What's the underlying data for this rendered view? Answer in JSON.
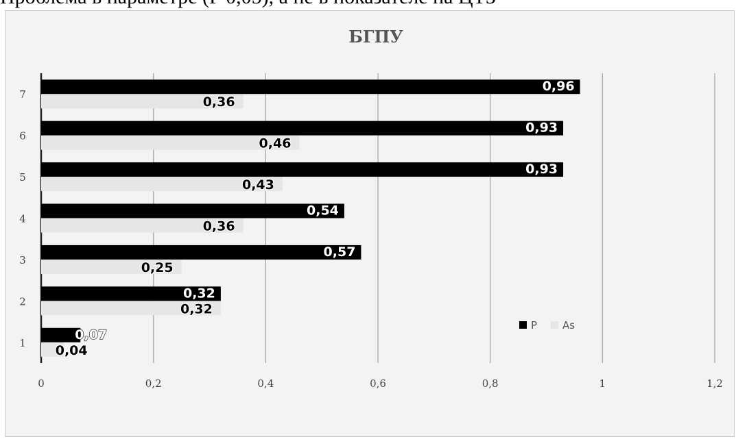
{
  "cut_text": "Проблема в параметре (Р 0,05), а не в показателе на ЦТЗ",
  "chart_data": {
    "type": "bar",
    "orientation": "horizontal",
    "title": "БГПУ",
    "categories": [
      "1",
      "2",
      "3",
      "4",
      "5",
      "6",
      "7"
    ],
    "series": [
      {
        "name": "P",
        "color": "#000000",
        "values": [
          0.07,
          0.32,
          0.57,
          0.54,
          0.93,
          0.93,
          0.96
        ],
        "labels": [
          "0,07",
          "0,32",
          "0,57",
          "0,54",
          "0,93",
          "0,93",
          "0,96"
        ]
      },
      {
        "name": "As",
        "color": "#e6e6e6",
        "values": [
          0.04,
          0.32,
          0.25,
          0.36,
          0.43,
          0.46,
          0.36
        ],
        "labels": [
          "0,04",
          "0,32",
          "0,25",
          "0,36",
          "0,43",
          "0,46",
          "0,36"
        ]
      }
    ],
    "xlim": [
      0,
      1.2
    ],
    "xticks": [
      0,
      0.2,
      0.4,
      0.6,
      0.8,
      1,
      1.2
    ],
    "xtick_labels": [
      "0",
      "0,2",
      "0,4",
      "0,6",
      "0,8",
      "1",
      "1,2"
    ],
    "xlabel": "",
    "ylabel": "",
    "grid": "vertical",
    "legend_position": "lower-right",
    "background": "#f3f3f3"
  }
}
